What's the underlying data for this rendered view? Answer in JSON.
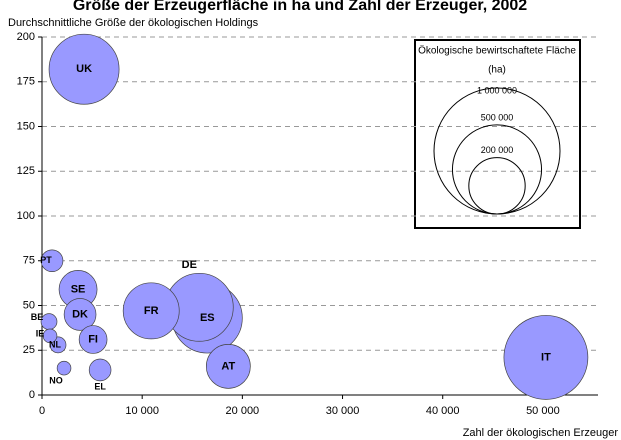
{
  "chart_data": {
    "type": "bubble",
    "title": "Größe der Erzeugerfläche in ha und Zahl der Erzeuger, 2002",
    "y_label": "Durchschnittliche Größe der ökologischen Holdings",
    "x_label": "Zahl der ökologischen Erzeuger",
    "categories": [
      "UK",
      "PT",
      "SE",
      "DK",
      "BE",
      "IE",
      "NL",
      "FI",
      "NO",
      "EL",
      "FR",
      "DE",
      "ES",
      "AT",
      "IT"
    ],
    "x": [
      4200,
      1000,
      3600,
      3800,
      700,
      800,
      1600,
      5100,
      2200,
      5800,
      10900,
      15700,
      16500,
      18600,
      50300
    ],
    "values": [
      182,
      75,
      59,
      45,
      41,
      33,
      28,
      31,
      15,
      14,
      47,
      49,
      43,
      16,
      21
    ],
    "sizes": [
      309000,
      30000,
      91000,
      64000,
      16000,
      12000,
      16000,
      49000,
      12000,
      30000,
      198000,
      291000,
      309000,
      122000,
      444000
    ],
    "color": "#9999ff",
    "xlim": [
      0,
      55500
    ],
    "ylim": [
      0,
      200
    ],
    "xticks": [
      0,
      {
        "value": 10000,
        "label": "10 000"
      },
      {
        "value": 20000,
        "label": "20 000"
      },
      {
        "value": 30000,
        "label": "30 000"
      },
      {
        "value": 40000,
        "label": "40 000"
      },
      {
        "value": 50000,
        "label": "50 000"
      }
    ],
    "yticks": [
      0,
      25,
      50,
      75,
      100,
      125,
      150,
      175,
      200
    ],
    "grid": true,
    "size_legend": {
      "title": "Ökologische  bewirtschaftete Fläche",
      "unit": "(ha)",
      "sizes": [
        {
          "value": 1000000,
          "label": "1 000 000"
        },
        {
          "value": 500000,
          "label": "500 000"
        },
        {
          "value": 200000,
          "label": "200 000"
        }
      ]
    }
  }
}
